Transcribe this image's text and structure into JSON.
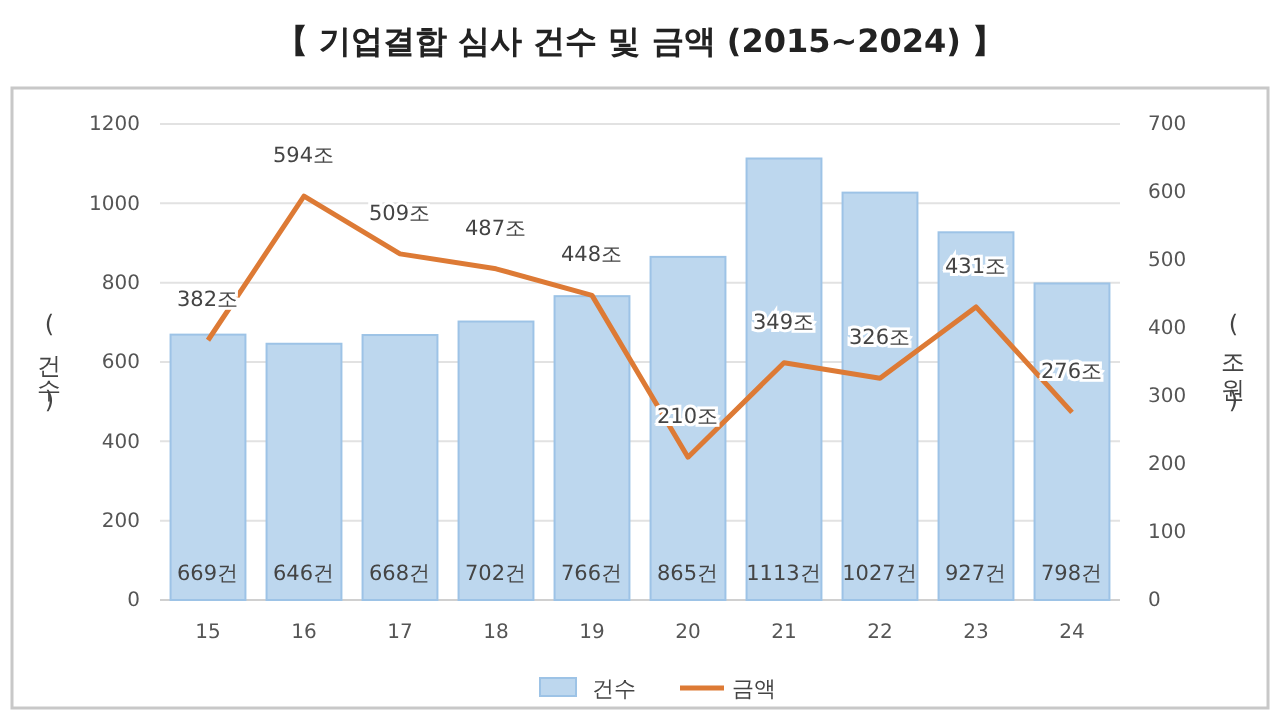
{
  "chart_data": {
    "type": "bar",
    "title": "【 기업결합 심사 건수 및 금액 (2015~2024) 】",
    "ylabel": "(건수)",
    "y2label": "(조원)",
    "categories": [
      "15",
      "16",
      "17",
      "18",
      "19",
      "20",
      "21",
      "22",
      "23",
      "24"
    ],
    "series": [
      {
        "name": "건수",
        "color": "#bdd7ee",
        "values": [
          669,
          646,
          668,
          702,
          766,
          865,
          1113,
          1027,
          927,
          798
        ],
        "value_labels": [
          "669건",
          "646건",
          "668건",
          "702건",
          "766건",
          "865건",
          "1113건",
          "1027건",
          "927건",
          "798건"
        ]
      },
      {
        "name": "금액",
        "type": "line",
        "axis": "y2",
        "color": "#dd7a35",
        "values": [
          382,
          594,
          509,
          487,
          448,
          210,
          349,
          326,
          431,
          276
        ],
        "value_labels": [
          "382조",
          "594조",
          "509조",
          "487조",
          "448조",
          "210조",
          "349조",
          "326조",
          "431조",
          "276조"
        ]
      }
    ],
    "ylim": [
      0,
      1200
    ],
    "yticks": [
      0,
      200,
      400,
      600,
      800,
      1000,
      1200
    ],
    "y2lim": [
      0,
      700
    ],
    "y2ticks": [
      0,
      100,
      200,
      300,
      400,
      500,
      600,
      700
    ],
    "grid": "y",
    "legend": "bottom",
    "marker": "none",
    "line_style": "solid"
  }
}
